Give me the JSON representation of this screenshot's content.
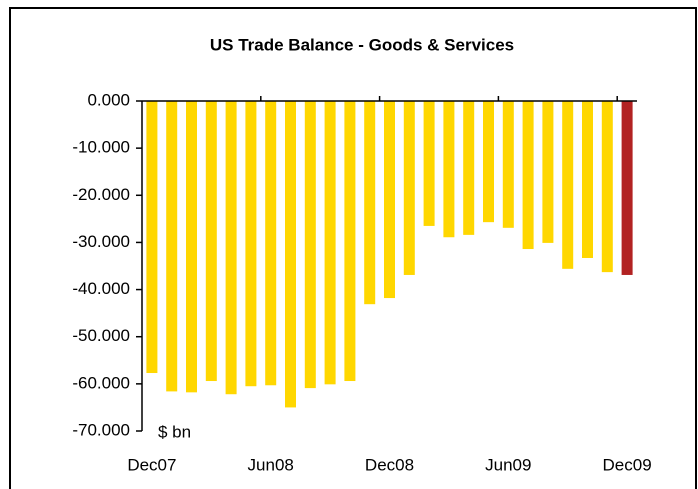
{
  "chart_data": {
    "type": "bar",
    "title": "US Trade Balance - Goods & Services",
    "unit_label": "$ bn",
    "categories": [
      "Dec07",
      null,
      null,
      null,
      null,
      null,
      "Jun08",
      null,
      null,
      null,
      null,
      null,
      "Dec08",
      null,
      null,
      null,
      null,
      null,
      "Jun09",
      null,
      null,
      null,
      null,
      null,
      "Dec09"
    ],
    "values": [
      -57.7,
      -61.6,
      -61.8,
      -59.4,
      -62.2,
      -60.5,
      -60.3,
      -65.0,
      -60.9,
      -60.1,
      -59.4,
      -43.1,
      -41.8,
      -36.9,
      -26.5,
      -28.9,
      -28.4,
      -25.7,
      -26.9,
      -31.4,
      -30.1,
      -35.6,
      -33.3,
      -36.3,
      -36.9
    ],
    "colors": [
      "#ffd700",
      "#ffd700",
      "#ffd700",
      "#ffd700",
      "#ffd700",
      "#ffd700",
      "#ffd700",
      "#ffd700",
      "#ffd700",
      "#ffd700",
      "#ffd700",
      "#ffd700",
      "#ffd700",
      "#ffd700",
      "#ffd700",
      "#ffd700",
      "#ffd700",
      "#ffd700",
      "#ffd700",
      "#ffd700",
      "#ffd700",
      "#ffd700",
      "#ffd700",
      "#ffd700",
      "#b22222"
    ],
    "ylim": [
      -70,
      0
    ],
    "yticks": [
      {
        "value": -70,
        "label": "-70.000"
      },
      {
        "value": -60,
        "label": "-60.000"
      },
      {
        "value": -50,
        "label": "-50.000"
      },
      {
        "value": -40,
        "label": "-40.000"
      },
      {
        "value": -30,
        "label": "-30.000"
      },
      {
        "value": -20,
        "label": "-20.000"
      },
      {
        "value": -10,
        "label": "-10.000"
      },
      {
        "value": 0,
        "label": "0.000"
      }
    ],
    "grid": false
  }
}
